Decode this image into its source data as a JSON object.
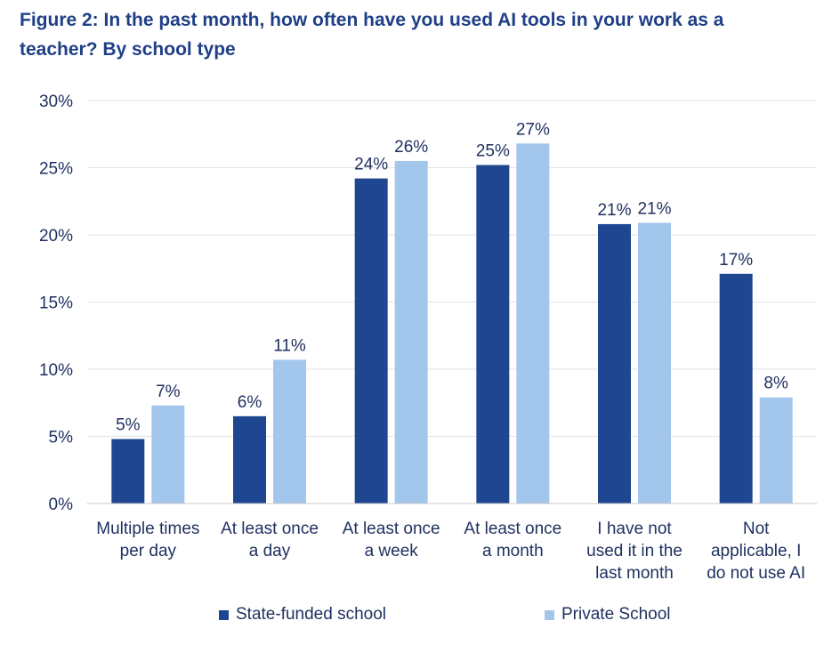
{
  "title": "Figure 2: In the past month, how often have you used AI tools in your work as a teacher? By school type",
  "chart_data": {
    "type": "bar",
    "title": "Figure 2: In the past month, how often have you used AI tools in your work as a teacher? By school type",
    "xlabel": "",
    "ylabel": "",
    "ylim": [
      0,
      30
    ],
    "yticks": [
      "0%",
      "5%",
      "10%",
      "15%",
      "20%",
      "25%",
      "30%"
    ],
    "grid": true,
    "legend_position": "bottom",
    "categories": [
      [
        "Multiple times",
        "per day"
      ],
      [
        "At least once",
        "a day"
      ],
      [
        "At least once",
        "a week"
      ],
      [
        "At least once",
        "a month"
      ],
      [
        "I have not",
        "used it in the",
        "last month"
      ],
      [
        "Not",
        "applicable, I",
        "do not use AI"
      ]
    ],
    "series": [
      {
        "name": "State-funded school",
        "color": "#1f4690",
        "values": [
          4.8,
          6.5,
          24.2,
          25.2,
          20.8,
          17.1
        ],
        "labels": [
          "5%",
          "6%",
          "24%",
          "25%",
          "21%",
          "17%"
        ]
      },
      {
        "name": "Private School",
        "color": "#a3c6ec",
        "values": [
          7.3,
          10.7,
          25.5,
          26.8,
          20.9,
          7.9
        ],
        "labels": [
          "7%",
          "11%",
          "26%",
          "27%",
          "21%",
          "8%"
        ]
      }
    ]
  }
}
